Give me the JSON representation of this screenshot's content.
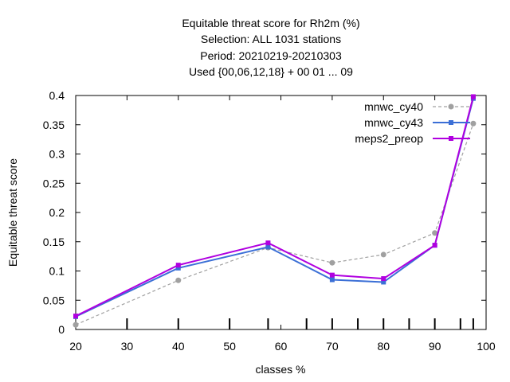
{
  "chart_data": {
    "type": "line",
    "title_lines": [
      "Equitable threat score  for Rh2m (%)",
      "Selection: ALL   1031 stations",
      "Period: 20210219-20210303",
      "Used {00,06,12,18} + 00 01 ... 09"
    ],
    "xlabel": "classes %",
    "ylabel": "Equitable threat score",
    "xlim": [
      20,
      100
    ],
    "ylim": [
      0,
      0.4
    ],
    "xticks": [
      "20",
      "30",
      "40",
      "50",
      "60",
      "70",
      "80",
      "90",
      "100"
    ],
    "yticks": [
      "0",
      "0.05",
      "0.1",
      "0.15",
      "0.2",
      "0.25",
      "0.3",
      "0.35",
      "0.4"
    ],
    "legend_position": "top-right",
    "grid": false,
    "minor_tick_marks_x": [
      30,
      40,
      50,
      57.5,
      65,
      70,
      75,
      80,
      85,
      90,
      95,
      97.5
    ],
    "series": [
      {
        "name": "mnwc_cy40",
        "color": "#a0a0a0",
        "dashed": true,
        "x": [
          20,
          40,
          57.5,
          70,
          80,
          90,
          97.5
        ],
        "y": [
          0.008,
          0.084,
          0.14,
          0.114,
          0.128,
          0.165,
          0.352
        ]
      },
      {
        "name": "mnwc_cy43",
        "color": "#3b6fd6",
        "dashed": false,
        "x": [
          20,
          40,
          57.5,
          70,
          80,
          90,
          97.5
        ],
        "y": [
          0.022,
          0.105,
          0.141,
          0.085,
          0.081,
          0.144,
          0.395
        ]
      },
      {
        "name": "meps2_preop",
        "color": "#b000e0",
        "dashed": false,
        "x": [
          20,
          40,
          57.5,
          70,
          80,
          90,
          97.5
        ],
        "y": [
          0.023,
          0.11,
          0.148,
          0.093,
          0.087,
          0.144,
          0.398
        ]
      }
    ]
  }
}
